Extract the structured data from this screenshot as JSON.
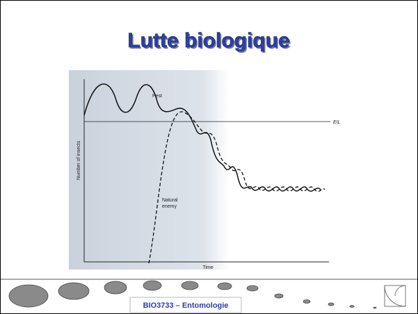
{
  "header": {
    "title": "Lutte biologique"
  },
  "figure": {
    "pest_label": "Pest",
    "threshold_label": "EIL",
    "y_axis_label": "Number of insects",
    "enemy_label": [
      "Natural",
      "enemy"
    ],
    "x_axis_label": "Time"
  },
  "footer": {
    "text": "BIO3733 – Entomologie"
  }
}
